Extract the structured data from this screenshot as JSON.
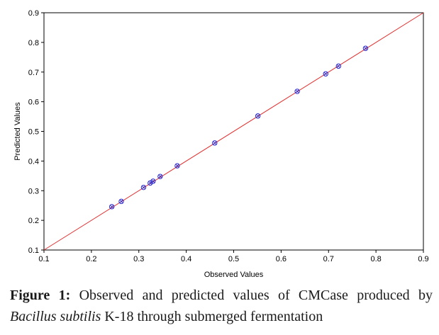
{
  "chart_data": {
    "type": "scatter",
    "xlabel": "Observed Values",
    "ylabel": "Predicted Values",
    "xlim": [
      0.1,
      0.9
    ],
    "ylim": [
      0.1,
      0.9
    ],
    "x_ticks": [
      "0.1",
      "0.2",
      "0.3",
      "0.4",
      "0.5",
      "0.6",
      "0.7",
      "0.8",
      "0.9"
    ],
    "y_ticks": [
      "0.1",
      "0.2",
      "0.3",
      "0.4",
      "0.5",
      "0.6",
      "0.7",
      "0.8",
      "0.9"
    ],
    "points": [
      {
        "x": 0.243,
        "y": 0.246
      },
      {
        "x": 0.263,
        "y": 0.264
      },
      {
        "x": 0.31,
        "y": 0.311
      },
      {
        "x": 0.324,
        "y": 0.326
      },
      {
        "x": 0.33,
        "y": 0.332
      },
      {
        "x": 0.345,
        "y": 0.348
      },
      {
        "x": 0.381,
        "y": 0.384
      },
      {
        "x": 0.46,
        "y": 0.461
      },
      {
        "x": 0.551,
        "y": 0.552
      },
      {
        "x": 0.634,
        "y": 0.635
      },
      {
        "x": 0.694,
        "y": 0.694
      },
      {
        "x": 0.721,
        "y": 0.72
      },
      {
        "x": 0.778,
        "y": 0.78
      }
    ],
    "reference_line": {
      "from": [
        0.1,
        0.1
      ],
      "to": [
        0.9,
        0.9
      ],
      "color": "#e03030"
    },
    "marker_color": "#2a2ad0",
    "grid": false
  },
  "caption": {
    "label": "Figure 1:",
    "text_before": " Observed and predicted values of CMCase produced by ",
    "species": "Bacillus subtilis",
    "text_after": " K-18 through submerged fermentation"
  }
}
